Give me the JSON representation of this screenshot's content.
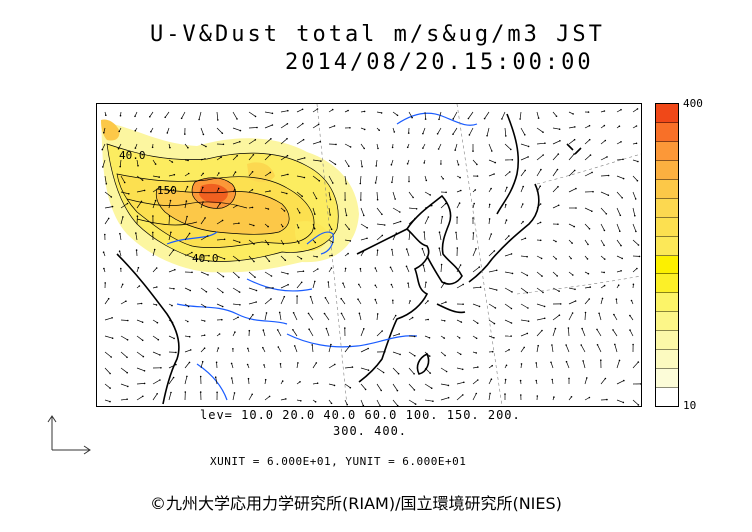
{
  "header": {
    "title": "U-V&Dust total m/s&ug/m3 JST",
    "datetime": "2014/08/20.15:00:00"
  },
  "colorbar": {
    "max_label": "400",
    "min_label": "10",
    "colors": [
      "#f04818",
      "#f87028",
      "#fc9838",
      "#fcb040",
      "#fcc848",
      "#fcd850",
      "#fce050",
      "#fce858",
      "#fcf000",
      "#fcf028",
      "#fcf468",
      "#fcf688",
      "#fcf8a8",
      "#fcfac0",
      "#fcfcd8",
      "#ffffff"
    ]
  },
  "levels": {
    "line1": "lev= 10.0 20.0 40.0 60.0 100. 150. 200.",
    "line2": "300. 400."
  },
  "units": "XUNIT = 6.000E+01, YUNIT = 6.000E+01",
  "copyright": "©九州大学応用力学研究所(RIAM)/国立環境研究所(NIES)",
  "map_labels": {
    "contour_40a": "40.0",
    "contour_150": "150",
    "contour_40b": "40.0"
  },
  "colors": {
    "coast": "#000000",
    "rivers": "#1a5cff",
    "grid": "#808080"
  }
}
